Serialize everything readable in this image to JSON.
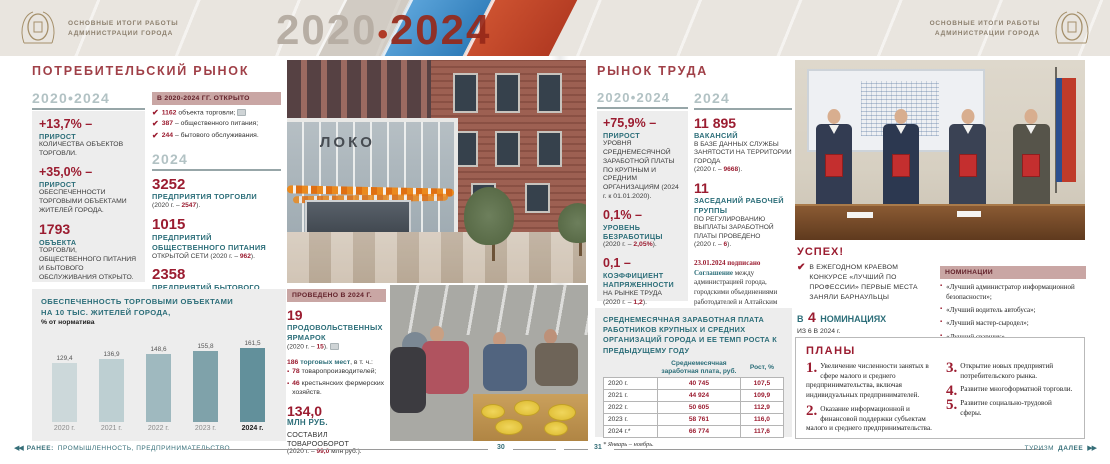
{
  "header": {
    "caption_line1": "ОСНОВНЫЕ ИТОГИ РАБОТЫ",
    "caption_line2": "АДМИНИСТРАЦИИ ГОРОДА",
    "period_left": "2020",
    "period_dot": "•",
    "period_right": "2024"
  },
  "colors": {
    "accent_red": "#9b1c30",
    "teal": "#2c6e79",
    "heading_gray": "#b2c2c4",
    "rose_header": "#c9a6a4",
    "panel_gray": "#ededed",
    "header_beige": "#e9e5df",
    "footer_teal": "#356e78"
  },
  "icons": {
    "check": "✔",
    "bullet": "▪",
    "prev_arrows": "◀◀",
    "next_arrows": "▶▶",
    "photo_ref": "photo-ref-marker",
    "crest": "city-coat-of-arms"
  },
  "chart_data": [
    {
      "type": "bar",
      "title": "ОБЕСПЕЧЕННОСТЬ ТОРГОВЫМИ ОБЪЕКТАМИ НА 10 ТЫС. ЖИТЕЛЕЙ ГОРОДА, % от норматива",
      "title_line1": "ОБЕСПЕЧЕННОСТЬ ТОРГОВЫМИ ОБЪЕКТАМИ",
      "title_line2": "НА 10 ТЫС. ЖИТЕЛЕЙ ГОРОДА,",
      "subtitle": "% от норматива",
      "categories": [
        "2020 г.",
        "2021 г.",
        "2022 г.",
        "2023 г.",
        "2024 г."
      ],
      "values": [
        129.4,
        136.9,
        148.6,
        155.8,
        161.5
      ],
      "value_labels": [
        "129,4",
        "136,9",
        "148,6",
        "155,8",
        "161,5"
      ],
      "ylim": [
        0,
        170
      ],
      "grid": false,
      "legend": false,
      "bar_colors": [
        "#ccd8da",
        "#bdcfd2",
        "#9fb9bf",
        "#7fa2aa",
        "#62909b"
      ]
    },
    {
      "type": "table",
      "title": "СРЕДНЕМЕСЯЧНАЯ ЗАРАБОТНАЯ ПЛАТА РАБОТНИКОВ КРУПНЫХ И СРЕДНИХ ОРГАНИЗАЦИЙ ГОРОДА И ЕЕ ТЕМП РОСТА К ПРЕДЫДУЩЕМУ ГОДУ",
      "columns": [
        "",
        "Среднемесячная заработная плата, руб.",
        "Рост, %"
      ],
      "rows": [
        [
          "2020 г.",
          "40 745",
          "107,5"
        ],
        [
          "2021 г.",
          "44 924",
          "109,9"
        ],
        [
          "2022 г.",
          "50 605",
          "112,9"
        ],
        [
          "2023 г.",
          "58 761",
          "116,0"
        ],
        [
          "2024 г.*",
          "66 774",
          "117,6"
        ]
      ],
      "footnote": "* Январь – ноябрь."
    }
  ],
  "left_page": {
    "title": "ПОТРЕБИТЕЛЬСКИЙ РЫНОК",
    "period_heading": "2020•2024",
    "period_stats": [
      {
        "value": "+13,7% –",
        "label": "ПРИРОСТ",
        "text": "КОЛИЧЕСТВА ОБЪЕКТОВ ТОРГОВЛИ."
      },
      {
        "value": "+35,0% –",
        "label": "ПРИРОСТ",
        "text": "ОБЕСПЕЧЕННОСТИ ТОРГОВЫМИ ОБЪЕКТАМИ ЖИТЕЛЕЙ ГОРОДА."
      },
      {
        "value": "1793",
        "label": "ОБЪЕКТА",
        "text": "ТОРГОВЛИ, ОБЩЕСТВЕННОГО ПИТАНИЯ И БЫТОВОГО ОБСЛУЖИВАНИЯ ОТКРЫТО."
      }
    ],
    "opened_box": {
      "heading": "В 2020-2024 ГГ. ОТКРЫТО",
      "items": [
        {
          "check": "✔",
          "value": "1162",
          "text": "объекта торговли;"
        },
        {
          "check": "✔",
          "value": "387",
          "text": "– общественного питания;"
        },
        {
          "check": "✔",
          "value": "244",
          "text": "– бытового обслуживания."
        }
      ]
    },
    "year_heading": "2024",
    "year_stats": [
      {
        "value": "3252",
        "label": "ПРЕДПРИЯТИЯ ТОРГОВЛИ",
        "pre": "(2020 г. – ",
        "num": "2547",
        "post": ")."
      },
      {
        "value": "1015",
        "label": "ПРЕДПРИЯТИЙ ОБЩЕСТВЕННОГО ПИТАНИЯ",
        "pre": "ОТКРЫТОЙ СЕТИ (2020 г. – ",
        "num": "962",
        "post": ")."
      },
      {
        "value": "2358",
        "label": "ПРЕДПРИЯТИЙ БЫТОВОГО ОБСЛУЖИВАНИЯ",
        "pre": "(2020 г. – ",
        "num": "2316",
        "post": ") РАБОТАЕТ НА ТЕРРИТОРИИ ГОРОДА."
      }
    ],
    "fairs_box": {
      "heading": "ПРОВЕДЕНО В 2024 Г.",
      "stat": {
        "value": "19",
        "label": "ПРОДОВОЛЬСТВЕННЫХ ЯРМАРОК",
        "pre": "(2020 г. – ",
        "num": "15",
        "post": ")."
      },
      "places": {
        "num": "186",
        "label": "торговых мест",
        "rest": ", в т. ч.:"
      },
      "bullets": [
        {
          "num": "78",
          "text": "товаропроизводителей;"
        },
        {
          "num": "46",
          "text": "крестьянских фермерских хозяйств."
        }
      ],
      "turnover": {
        "value": "134,0",
        "label": "МЛН РУБ.",
        "text": "СОСТАВИЛ ТОВАРООБОРОТ",
        "pre": "(2020 г. – ",
        "num": "99,0",
        "post": " млн руб.)."
      }
    },
    "store_photo_sign": "ЛОКО"
  },
  "right_page": {
    "title": "РЫНОК ТРУДА",
    "period_heading": "2020•2024",
    "period_stats": [
      {
        "value": "+75,9% –",
        "label": "ПРИРОСТ",
        "text": "УРОВНЯ СРЕДНЕМЕСЯЧНОЙ ЗАРАБОТНОЙ ПЛАТЫ ПО КРУПНЫМ И СРЕДНИМ ОРГАНИЗАЦИЯМ (2024 г. к 01.01.2020)."
      },
      {
        "value": "0,1% –",
        "label": "УРОВЕНЬ БЕЗРАБОТИЦЫ",
        "pre": "(2020 г. – ",
        "num": "2,05%",
        "post": ")."
      },
      {
        "value": "0,1 –",
        "label": "КОЭФФИЦИЕНТ НАПРЯЖЕННОСТИ",
        "text": "НА РЫНКЕ ТРУДА",
        "pre": "(2020 г. – ",
        "num": "1,2",
        "post": ")."
      }
    ],
    "year_heading": "2024",
    "year_stats": [
      {
        "value": "11 895",
        "label": "ВАКАНСИЙ",
        "text": "В БАЗЕ ДАННЫХ СЛУЖБЫ ЗАНЯТОСТИ НА ТЕРРИТОРИИ ГОРОДА",
        "pre": "(2020 г. – ",
        "num": "9668",
        "post": ")."
      },
      {
        "value": "11",
        "label": "ЗАСЕДАНИЙ РАБОЧЕЙ ГРУППЫ",
        "text": "ПО РЕГУЛИРОВАНИЮ ВЫПЛАТЫ ЗАРАБОТНОЙ ПЛАТЫ ПРОВЕДЕНО",
        "pre": "(2020 г. – ",
        "num": "6",
        "post": ")."
      }
    ],
    "agreement": {
      "date": "23.01.2024 подписано",
      "lead": "Соглашение",
      "text": "между администрацией города, городскими объединениями работодателей и Алтайским краевым союзом организаций профсоюзов на 2024-2026 годы."
    },
    "success": {
      "title": "УСПЕХ!",
      "check": "✔",
      "text": "В ЕЖЕГОДНОМ КРАЕВОМ КОНКУРСЕ «ЛУЧШИЙ ПО ПРОФЕССИИ» ПЕРВЫЕ МЕСТА ЗАНЯЛИ БАРНАУЛЬЦЫ",
      "in_word": "В",
      "count": "4",
      "nominations_word": "НОМИНАЦИЯХ",
      "subtext": "ИЗ 6 В 2024 г."
    },
    "nominations": {
      "heading": "НОМИНАЦИИ",
      "items": [
        "«Лучший администратор информационной безопасности»;",
        "«Лучший водитель автобуса»;",
        "«Лучший мастер-сыродел»;",
        "«Лучший сварщик»."
      ]
    },
    "plans": {
      "title": "ПЛАНЫ",
      "items": [
        {
          "num": "1.",
          "text": "Увеличение численности занятых в сфере малого и среднего предпринимательства, включая индивидуальных предпринимателей."
        },
        {
          "num": "2.",
          "text": "Оказание информационной и финансовой поддержки субъектам малого и среднего предпринимательства."
        },
        {
          "num": "3.",
          "text": "Открытие новых предприятий потребительского рынка."
        },
        {
          "num": "4.",
          "text": "Развитие многоформатной торговли."
        },
        {
          "num": "5.",
          "text": "Развитие социально-трудовой сферы."
        }
      ]
    }
  },
  "footer": {
    "prev_arrows": "◀◀",
    "prev_label": "РАНЕЕ:",
    "prev_text": "ПРОМЫШЛЕННОСТЬ, ПРЕДПРИНИМАТЕЛЬСТВО",
    "page_left": "30",
    "page_right": "31",
    "next_text": "ТУРИЗМ",
    "next_label": "ДАЛЕЕ",
    "next_arrows": "▶▶"
  }
}
